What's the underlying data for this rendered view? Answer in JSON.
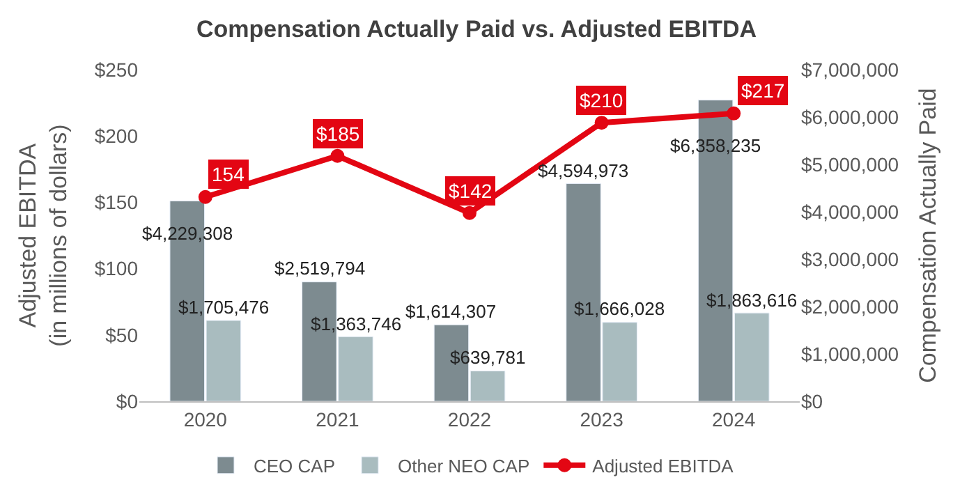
{
  "chart_data": {
    "type": "bar",
    "title": "Compensation Actually Paid vs. Adjusted EBITDA",
    "categories": [
      "2020",
      "2021",
      "2022",
      "2023",
      "2024"
    ],
    "series": [
      {
        "name": "CEO CAP",
        "axis": "y2",
        "color": "#7d8b90",
        "values": [
          4229308,
          2519794,
          1614307,
          4594973,
          6358235
        ],
        "value_labels": [
          "$4,229,308",
          "$2,519,794",
          "$1,614,307",
          "$4,594,973",
          "$6,358,235"
        ]
      },
      {
        "name": "Other NEO CAP",
        "axis": "y2",
        "color": "#a9bcbf",
        "values": [
          1705476,
          1363746,
          639781,
          1666028,
          1863616
        ],
        "value_labels": [
          "$1,705,476",
          "$1,363,746",
          "$639,781",
          "$1,666,028",
          "$1,863,616"
        ]
      },
      {
        "name": "Adjusted EBITDA",
        "type": "line",
        "axis": "y",
        "color": "#e30613",
        "values": [
          154,
          185,
          142,
          210,
          217
        ],
        "value_labels": [
          "154",
          "$185",
          "$142",
          "$210",
          "$217"
        ]
      }
    ],
    "ylabel": "Adjusted EBITDA\n(in millions of dollars)",
    "y2label": "Compensation Actually Paid",
    "ylim": [
      0,
      250
    ],
    "yticks": [
      {
        "value": 0,
        "label": "$0"
      },
      {
        "value": 50,
        "label": "$50"
      },
      {
        "value": 100,
        "label": "$100"
      },
      {
        "value": 150,
        "label": "$150"
      },
      {
        "value": 200,
        "label": "$200"
      },
      {
        "value": 250,
        "label": "$250"
      }
    ],
    "y2lim": [
      0,
      7000000
    ],
    "y2ticks": [
      {
        "value": 0,
        "label": "$0"
      },
      {
        "value": 1000000,
        "label": "$1,000,000"
      },
      {
        "value": 2000000,
        "label": "$2,000,000"
      },
      {
        "value": 3000000,
        "label": "$3,000,000"
      },
      {
        "value": 4000000,
        "label": "$4,000,000"
      },
      {
        "value": 5000000,
        "label": "$5,000,000"
      },
      {
        "value": 6000000,
        "label": "$6,000,000"
      },
      {
        "value": 7000000,
        "label": "$7,000,000"
      }
    ],
    "legend": "bottom",
    "marker": "circle",
    "line_style": "solid"
  }
}
